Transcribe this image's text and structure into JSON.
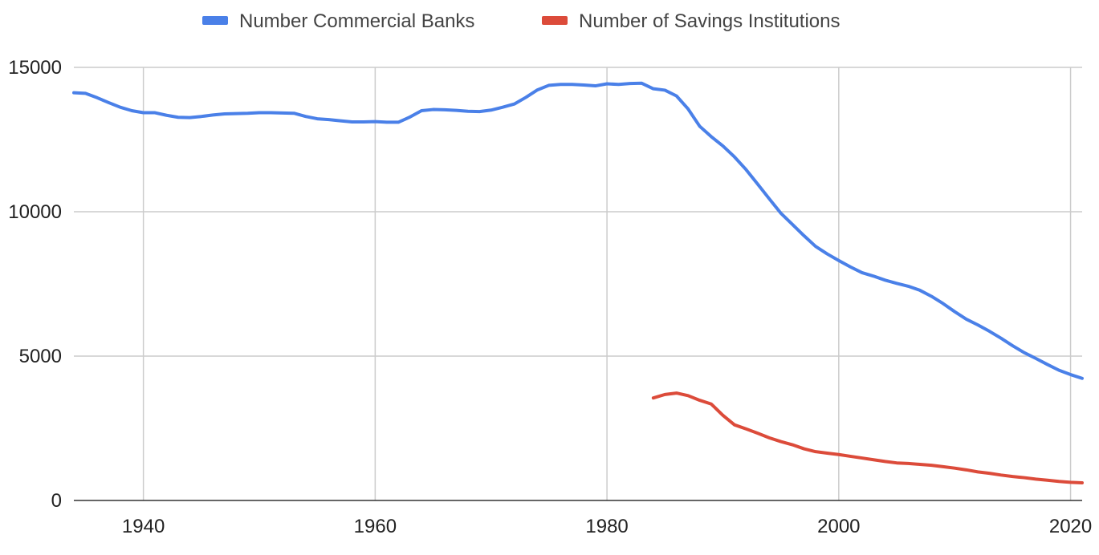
{
  "chart_data": {
    "type": "line",
    "title": "",
    "xlabel": "",
    "ylabel": "",
    "xlim": [
      1934,
      2021
    ],
    "ylim": [
      0,
      15000
    ],
    "x_ticks": [
      1940,
      1960,
      1980,
      2000,
      2020
    ],
    "y_ticks": [
      0,
      5000,
      10000,
      15000
    ],
    "grid": true,
    "legend_position": "top",
    "series": [
      {
        "name": "Number Commercial Banks",
        "color": "#4a80e8",
        "x": [
          1934,
          1935,
          1936,
          1937,
          1938,
          1939,
          1940,
          1941,
          1942,
          1943,
          1944,
          1945,
          1946,
          1947,
          1948,
          1949,
          1950,
          1951,
          1952,
          1953,
          1954,
          1955,
          1956,
          1957,
          1958,
          1959,
          1960,
          1961,
          1962,
          1963,
          1964,
          1965,
          1966,
          1967,
          1968,
          1969,
          1970,
          1971,
          1972,
          1973,
          1974,
          1975,
          1976,
          1977,
          1978,
          1979,
          1980,
          1981,
          1982,
          1983,
          1984,
          1985,
          1986,
          1987,
          1988,
          1989,
          1990,
          1991,
          1992,
          1993,
          1994,
          1995,
          1996,
          1997,
          1998,
          1999,
          2000,
          2001,
          2002,
          2003,
          2004,
          2005,
          2006,
          2007,
          2008,
          2009,
          2010,
          2011,
          2012,
          2013,
          2014,
          2015,
          2016,
          2017,
          2018,
          2019,
          2020,
          2021
        ],
        "y": [
          14120,
          14100,
          13950,
          13780,
          13620,
          13500,
          13430,
          13430,
          13340,
          13270,
          13260,
          13300,
          13350,
          13390,
          13400,
          13410,
          13430,
          13430,
          13420,
          13410,
          13300,
          13220,
          13190,
          13150,
          13110,
          13110,
          13120,
          13100,
          13100,
          13280,
          13500,
          13540,
          13530,
          13510,
          13480,
          13470,
          13520,
          13620,
          13730,
          13960,
          14220,
          14380,
          14410,
          14410,
          14390,
          14360,
          14430,
          14410,
          14440,
          14450,
          14260,
          14210,
          14010,
          13560,
          12960,
          12600,
          12280,
          11900,
          11460,
          10960,
          10450,
          9950,
          9560,
          9170,
          8800,
          8540,
          8310,
          8090,
          7890,
          7770,
          7630,
          7520,
          7420,
          7280,
          7070,
          6820,
          6540,
          6280,
          6080,
          5860,
          5620,
          5360,
          5120,
          4920,
          4710,
          4510,
          4360,
          4230
        ]
      },
      {
        "name": "Number of Savings Institutions",
        "color": "#dc4b3a",
        "x": [
          1984,
          1985,
          1986,
          1987,
          1988,
          1989,
          1990,
          1991,
          1992,
          1993,
          1994,
          1995,
          1996,
          1997,
          1998,
          1999,
          2000,
          2001,
          2002,
          2003,
          2004,
          2005,
          2006,
          2007,
          2008,
          2009,
          2010,
          2011,
          2012,
          2013,
          2014,
          2015,
          2016,
          2017,
          2018,
          2019,
          2020,
          2021
        ],
        "y": [
          3550,
          3670,
          3720,
          3630,
          3470,
          3340,
          2950,
          2620,
          2480,
          2330,
          2170,
          2040,
          1930,
          1790,
          1690,
          1640,
          1590,
          1530,
          1470,
          1410,
          1350,
          1300,
          1280,
          1250,
          1220,
          1170,
          1120,
          1060,
          990,
          940,
          880,
          830,
          790,
          740,
          700,
          660,
          630,
          610
        ]
      }
    ]
  }
}
